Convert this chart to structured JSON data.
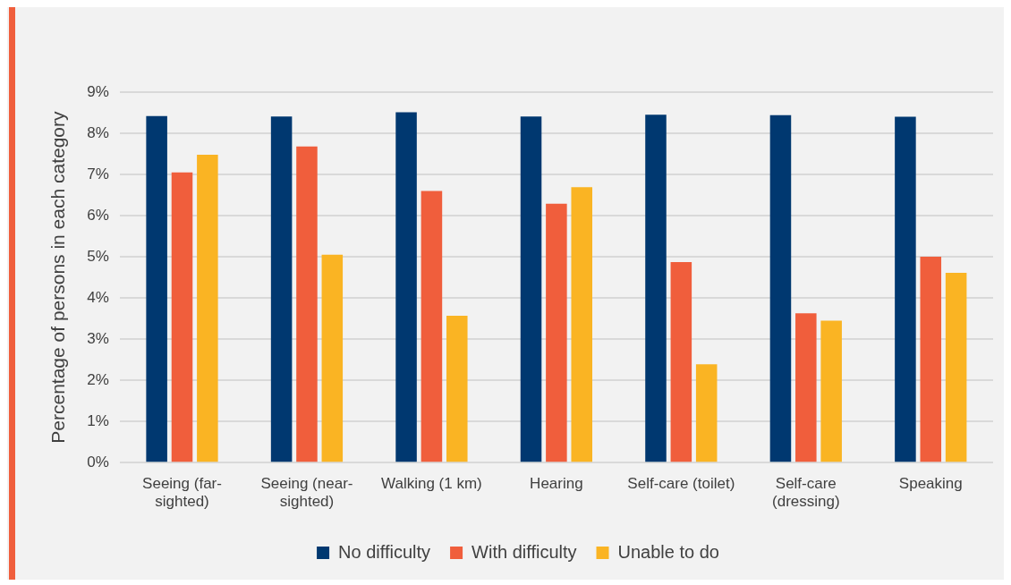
{
  "chart_data": {
    "type": "bar",
    "ylabel": "Percentage of persons in each category",
    "categories": [
      "Seeing (far-sighted)",
      "Seeing (near-sighted)",
      "Walking (1 km)",
      "Hearing",
      "Self-care (toilet)",
      "Self-care (dressing)",
      "Speaking"
    ],
    "series": [
      {
        "name": "No difficulty",
        "color": "#003870",
        "values": [
          8.42,
          8.41,
          8.51,
          8.41,
          8.45,
          8.44,
          8.4
        ]
      },
      {
        "name": "With difficulty",
        "color": "#f05e3c",
        "values": [
          7.05,
          7.68,
          6.6,
          6.29,
          4.87,
          3.63,
          5.0
        ]
      },
      {
        "name": "Unable to do",
        "color": "#fab423",
        "values": [
          7.48,
          5.05,
          3.57,
          6.69,
          2.39,
          3.45,
          4.61
        ]
      }
    ],
    "ylim": [
      0,
      9
    ],
    "yticks": [
      {
        "value": 0,
        "label": "0%"
      },
      {
        "value": 1,
        "label": "1%"
      },
      {
        "value": 2,
        "label": "2%"
      },
      {
        "value": 3,
        "label": "3%"
      },
      {
        "value": 4,
        "label": "4%"
      },
      {
        "value": 5,
        "label": "5%"
      },
      {
        "value": 6,
        "label": "6%"
      },
      {
        "value": 7,
        "label": "7%"
      },
      {
        "value": 8,
        "label": "8%"
      },
      {
        "value": 9,
        "label": "9%"
      }
    ],
    "grid": "y",
    "legend": "bottom"
  }
}
